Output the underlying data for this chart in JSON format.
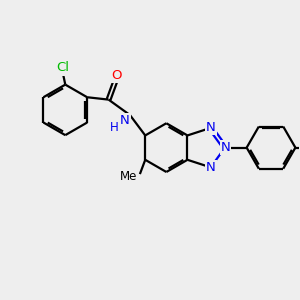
{
  "bg_color": "#eeeeee",
  "bond_color": "#000000",
  "bond_width": 1.6,
  "atom_colors": {
    "Cl": "#00bb00",
    "O": "#ff0000",
    "N": "#0000ee",
    "NH": "#0000ee",
    "H": "#0000ee",
    "C": "#000000",
    "Me": "#000000"
  },
  "figsize": [
    3.0,
    3.0
  ],
  "dpi": 100
}
